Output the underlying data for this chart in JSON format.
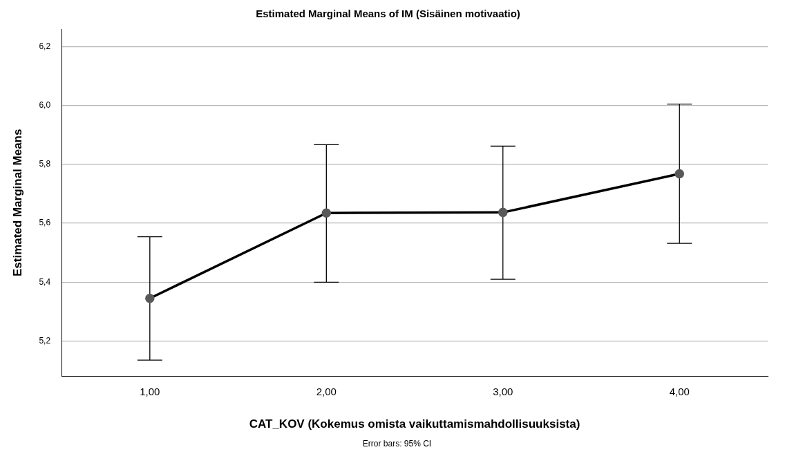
{
  "chart_data": {
    "type": "line",
    "title": "Estimated Marginal Means of IM (Sisäinen motivaatio)",
    "xlabel": "CAT_KOV (Kokemus omista vaikuttamismahdollisuuksista)",
    "ylabel": "Estimated Marginal Means",
    "annotations": [
      "Error bars: 95% CI"
    ],
    "categories": [
      "1,00",
      "2,00",
      "3,00",
      "4,00"
    ],
    "series": [
      {
        "color": "#000000",
        "values": [
          5.345,
          5.635,
          5.637,
          5.768
        ],
        "errors": [
          [
            5.135,
            5.554
          ],
          [
            5.4,
            5.867
          ],
          [
            5.41,
            5.862
          ],
          [
            5.532,
            6.005
          ]
        ]
      }
    ],
    "ylim": [
      5.08,
      6.26
    ],
    "yticks": [
      {
        "value": 5.2,
        "label": "5,2"
      },
      {
        "value": 5.4,
        "label": "5,4"
      },
      {
        "value": 5.6,
        "label": "5,6"
      },
      {
        "value": 5.8,
        "label": "5,8"
      },
      {
        "value": 6.0,
        "label": "6,0"
      },
      {
        "value": 6.2,
        "label": "6,2"
      }
    ],
    "grid": "y",
    "legend": false,
    "marker": "circle",
    "line_style": "solid"
  }
}
